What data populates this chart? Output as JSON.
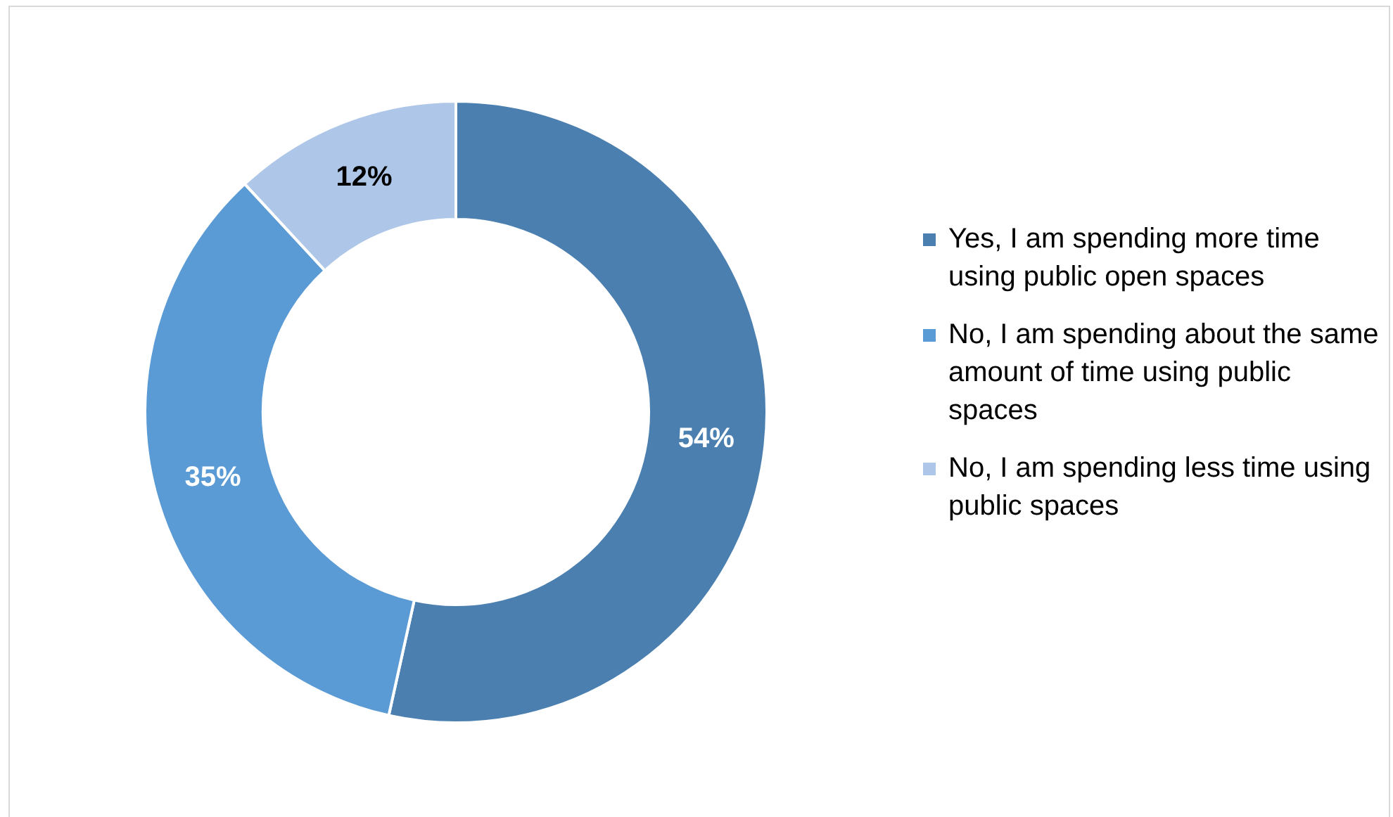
{
  "chart_data": {
    "type": "donut",
    "categories": [
      "Yes, I am spending more time using public open spaces",
      "No, I am spending about the same amount of time using public spaces",
      "No, I am spending less time using public spaces"
    ],
    "values": [
      54,
      35,
      12
    ],
    "colors": [
      "#4a7fb0",
      "#5b9bd5",
      "#aec6e8"
    ],
    "value_labels": [
      "54%",
      "35%",
      "12%"
    ],
    "legend": "right"
  }
}
